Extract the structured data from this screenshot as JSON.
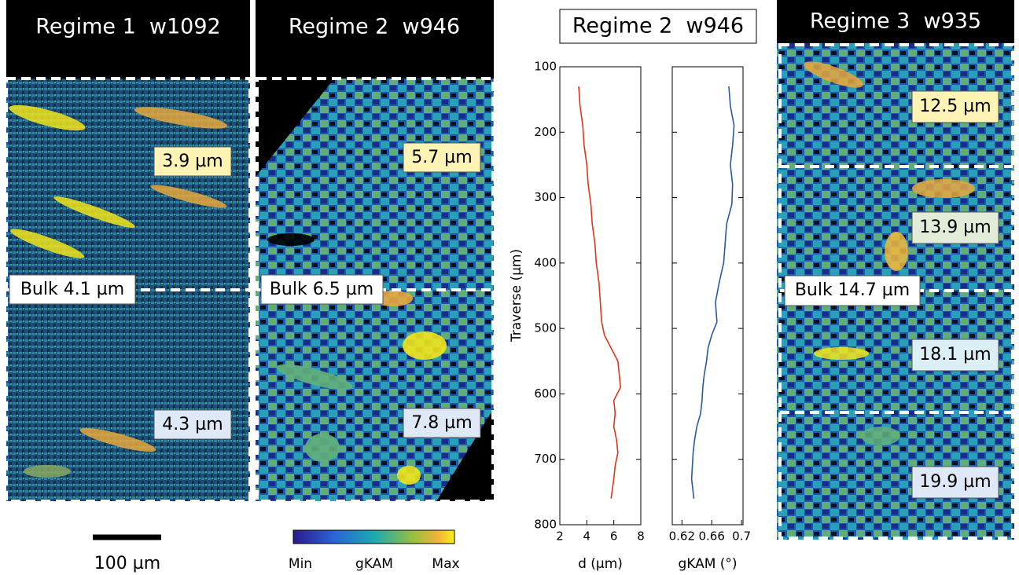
{
  "panels": [
    {
      "title": "Regime 1  w1092",
      "labels": [
        "3.9 µm",
        "Bulk 4.1 µm",
        "4.3 µm"
      ]
    },
    {
      "title": "Regime 2  w946",
      "labels": [
        "5.7 µm",
        "Bulk 6.5 µm",
        "7.8 µm"
      ]
    },
    {
      "title": "Regime 3  w935",
      "labels": [
        "12.5 µm",
        "13.9 µm",
        "Bulk 14.7 µm",
        "18.1 µm",
        "19.9 µm"
      ]
    }
  ],
  "scale_bar": "100 µm",
  "colorbar": {
    "min": "Min",
    "label": "gKAM",
    "max": "Max"
  },
  "profile_title": "Regime 2  w946",
  "chart_data": [
    {
      "type": "line",
      "xlabel": "d (µm)",
      "ylabel": "Traverse (µm)",
      "color": "#d9361e",
      "y": [
        130,
        160,
        190,
        220,
        250,
        280,
        310,
        340,
        370,
        400,
        430,
        460,
        490,
        510,
        530,
        550,
        570,
        590,
        610,
        630,
        650,
        670,
        690,
        710,
        730,
        760
      ],
      "values": [
        3.4,
        3.5,
        3.7,
        3.8,
        4.0,
        4.1,
        4.3,
        4.4,
        4.6,
        4.7,
        4.9,
        5.0,
        5.1,
        5.3,
        5.8,
        6.3,
        6.4,
        6.5,
        6.0,
        6.1,
        6.0,
        6.2,
        6.3,
        6.1,
        6.0,
        5.8
      ],
      "xlim": [
        2,
        8
      ],
      "xticks": [
        2,
        4,
        6,
        8
      ],
      "ylim": [
        800,
        100
      ],
      "yticks": [
        100,
        200,
        300,
        400,
        500,
        600,
        700,
        800
      ]
    },
    {
      "type": "line",
      "xlabel": "gKAM (°)",
      "color": "#2a5a9e",
      "y": [
        130,
        160,
        190,
        220,
        250,
        280,
        310,
        340,
        370,
        400,
        430,
        460,
        490,
        510,
        530,
        550,
        570,
        590,
        610,
        630,
        650,
        670,
        690,
        710,
        730,
        760
      ],
      "values": [
        0.683,
        0.685,
        0.69,
        0.688,
        0.685,
        0.688,
        0.687,
        0.68,
        0.678,
        0.676,
        0.67,
        0.665,
        0.667,
        0.66,
        0.655,
        0.653,
        0.65,
        0.648,
        0.647,
        0.645,
        0.64,
        0.637,
        0.635,
        0.634,
        0.633,
        0.636
      ],
      "xlim": [
        0.607,
        0.702
      ],
      "xticks": [
        0.62,
        0.66,
        0.7
      ],
      "ylim": [
        800,
        100
      ],
      "yticks": [
        100,
        200,
        300,
        400,
        500,
        600,
        700,
        800
      ]
    }
  ]
}
